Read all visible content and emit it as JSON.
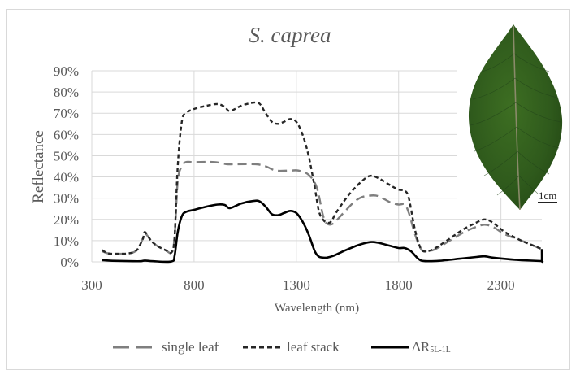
{
  "chart_data": {
    "type": "line",
    "title": "S. caprea",
    "xlabel": "Wavelength (nm)",
    "ylabel": "Reflectance",
    "xlim": [
      300,
      2500
    ],
    "ylim": [
      0,
      90
    ],
    "x_ticks": [
      "300",
      "800",
      "1300",
      "1800",
      "2300"
    ],
    "y_ticks": [
      "0%",
      "10%",
      "20%",
      "30%",
      "40%",
      "50%",
      "60%",
      "70%",
      "80%",
      "90%"
    ],
    "grid": true,
    "legend_position": "bottom",
    "series": [
      {
        "name": "single leaf",
        "style": "long-dash",
        "color": "#7f7f7f",
        "x": [
          350,
          380,
          420,
          480,
          520,
          550,
          560,
          590,
          620,
          660,
          690,
          705,
          720,
          740,
          760,
          800,
          900,
          960,
          1000,
          1100,
          1150,
          1200,
          1270,
          1310,
          1360,
          1400,
          1430,
          1450,
          1480,
          1520,
          1580,
          1620,
          1660,
          1700,
          1760,
          1800,
          1830,
          1850,
          1880,
          1910,
          1940,
          1980,
          2050,
          2120,
          2180,
          2220,
          2260,
          2320,
          2400,
          2450,
          2500
        ],
        "values": [
          5,
          4,
          3.8,
          4,
          5.5,
          11,
          13.5,
          10,
          7.5,
          5.5,
          4.5,
          12,
          38,
          45,
          47,
          47,
          47,
          46,
          46,
          46,
          45,
          43,
          43,
          43,
          41,
          35,
          22,
          18,
          18,
          22,
          28,
          30.5,
          31.2,
          31,
          28,
          27,
          27,
          23,
          13,
          6,
          5,
          6,
          10,
          14,
          16.5,
          17.5,
          16.5,
          13,
          10,
          8,
          6
        ]
      },
      {
        "name": "leaf stack",
        "style": "short-dash",
        "color": "#262626",
        "x": [
          350,
          380,
          420,
          480,
          520,
          550,
          560,
          590,
          620,
          660,
          690,
          705,
          720,
          740,
          760,
          800,
          860,
          915,
          950,
          975,
          1030,
          1090,
          1120,
          1150,
          1180,
          1210,
          1240,
          1270,
          1300,
          1330,
          1360,
          1390,
          1410,
          1430,
          1450,
          1470,
          1500,
          1560,
          1620,
          1660,
          1700,
          1760,
          1800,
          1830,
          1850,
          1880,
          1910,
          1940,
          1980,
          2050,
          2120,
          2180,
          2220,
          2260,
          2320,
          2400,
          2450,
          2500
        ],
        "values": [
          5.5,
          4,
          3.8,
          4,
          5.5,
          11,
          14,
          10,
          7.5,
          5.5,
          4.5,
          12,
          45,
          66,
          70,
          72,
          73.5,
          74.3,
          73,
          71,
          73.5,
          75,
          74.5,
          70,
          66,
          65,
          66,
          67.3,
          66,
          60,
          50,
          35,
          24,
          20,
          18.5,
          19,
          24,
          32,
          38,
          40.5,
          39.5,
          36,
          34,
          33.5,
          30,
          15,
          6,
          5,
          6.5,
          11,
          15.5,
          18.5,
          20,
          18.5,
          14,
          10,
          8,
          6
        ]
      },
      {
        "name": "ΔR5L-1L",
        "style": "solid",
        "color": "#000000",
        "x": [
          350,
          400,
          500,
          540,
          560,
          600,
          690,
          705,
          720,
          740,
          760,
          800,
          860,
          915,
          950,
          975,
          1030,
          1090,
          1120,
          1150,
          1180,
          1210,
          1240,
          1270,
          1300,
          1330,
          1360,
          1390,
          1410,
          1430,
          1450,
          1480,
          1530,
          1600,
          1660,
          1700,
          1760,
          1800,
          1830,
          1860,
          1890,
          1910,
          1940,
          2000,
          2100,
          2180,
          2220,
          2260,
          2320,
          2400,
          2495,
          2500,
          2500
        ],
        "values": [
          0.8,
          0.5,
          0.3,
          0.3,
          0.6,
          0.3,
          0.2,
          3,
          14,
          21.5,
          23.5,
          24.5,
          26,
          27,
          26.8,
          25.3,
          27.5,
          28.7,
          28.5,
          26,
          22.5,
          22,
          23,
          24,
          23,
          19,
          13,
          5,
          2.5,
          2,
          2,
          2.8,
          5,
          7.8,
          9.3,
          9,
          7.5,
          6.5,
          6.5,
          5,
          2,
          0.6,
          0.3,
          0.5,
          1.5,
          2.3,
          2.6,
          2,
          1.4,
          0.8,
          0.4,
          0.5,
          6
        ]
      }
    ]
  },
  "legend": {
    "single_leaf": "single leaf",
    "leaf_stack": "leaf stack",
    "delta_main": "ΔR",
    "delta_sub": "5L-1L"
  },
  "inset": {
    "image_description": "green leaf photograph",
    "scale_bar_label": "1cm"
  }
}
